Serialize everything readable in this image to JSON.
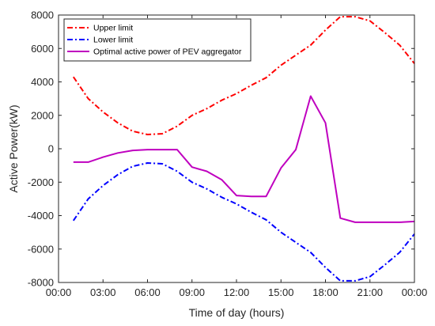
{
  "chart_data": {
    "type": "line",
    "xlabel": "Time of day (hours)",
    "ylabel": "Active Power(kW)",
    "xlim": [
      0,
      24
    ],
    "ylim": [
      -8000,
      8000
    ],
    "x_ticks": [
      0,
      3,
      6,
      9,
      12,
      15,
      18,
      21,
      24
    ],
    "x_tick_labels": [
      "00:00",
      "03:00",
      "06:00",
      "09:00",
      "12:00",
      "15:00",
      "18:00",
      "21:00",
      "00:00"
    ],
    "y_ticks": [
      -8000,
      -6000,
      -4000,
      -2000,
      0,
      2000,
      4000,
      6000,
      8000
    ],
    "y_tick_labels": [
      "-8000",
      "-6000",
      "-4000",
      "-2000",
      "0",
      "2000",
      "4000",
      "6000",
      "8000"
    ],
    "grid": false,
    "legend_position": "top-left",
    "x": [
      1,
      2,
      3,
      4,
      5,
      6,
      7,
      8,
      9,
      10,
      11,
      12,
      13,
      14,
      15,
      16,
      17,
      18,
      19,
      20,
      21,
      22,
      23,
      24
    ],
    "series": [
      {
        "name": "Upper limit",
        "color": "#ff0000",
        "dash": "dashdot",
        "values": [
          4300,
          3000,
          2200,
          1550,
          1050,
          850,
          900,
          1350,
          2000,
          2400,
          2900,
          3300,
          3800,
          4250,
          5000,
          5600,
          6200,
          7100,
          7900,
          7900,
          7650,
          6950,
          6200,
          5100
        ]
      },
      {
        "name": "Lower limit",
        "color": "#0000ff",
        "dash": "dashdot",
        "values": [
          -4300,
          -3000,
          -2200,
          -1550,
          -1050,
          -850,
          -900,
          -1350,
          -2000,
          -2400,
          -2900,
          -3300,
          -3800,
          -4250,
          -5000,
          -5600,
          -6200,
          -7100,
          -7900,
          -7900,
          -7650,
          -6950,
          -6200,
          -5100
        ]
      },
      {
        "name": "Optimal active power of PEV aggregator",
        "color": "#bf00bf",
        "dash": "solid",
        "values": [
          -800,
          -800,
          -500,
          -250,
          -100,
          -50,
          -50,
          -50,
          -1100,
          -1350,
          -1850,
          -2800,
          -2850,
          -2850,
          -1150,
          -50,
          3150,
          1550,
          -4150,
          -4400,
          -4400,
          -4400,
          -4400,
          -4350
        ]
      }
    ]
  }
}
